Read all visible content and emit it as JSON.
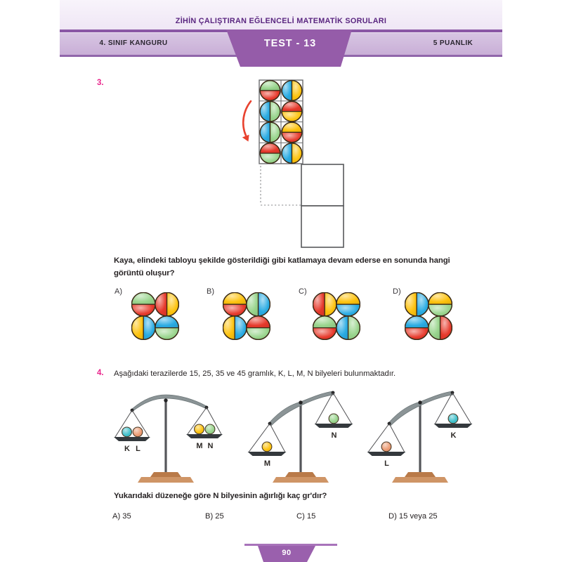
{
  "header": {
    "title": "ZİHİN ÇALIŞTIRAN EĞLENCELİ MATEMATİK SORULARI",
    "left_label": "4. SINIF KANGURU",
    "center_label": "TEST - 13",
    "right_label": "5 PUANLIK"
  },
  "q3": {
    "number": "3.",
    "question_lines": [
      "Kaya, elindeki tabloyu şekilde gösterildiği gibi katlamaya devam ederse en sonunda hangi",
      "görüntü oluşur?"
    ],
    "grid_balls": [
      [
        [
          "h",
          "green",
          "red"
        ],
        [
          "v",
          "blue",
          "yellow"
        ]
      ],
      [
        [
          "v",
          "blue",
          "green"
        ],
        [
          "h",
          "red",
          "yellow"
        ]
      ],
      [
        [
          "v",
          "blue",
          "green"
        ],
        [
          "h",
          "yellow",
          "red"
        ]
      ],
      [
        [
          "h",
          "red",
          "green"
        ],
        [
          "v",
          "blue",
          "yellow"
        ]
      ]
    ],
    "options": [
      {
        "label": "A)",
        "balls": [
          [
            "h",
            "green",
            "red"
          ],
          [
            "v",
            "red",
            "yellow"
          ],
          [
            "v",
            "yellow",
            "blue"
          ],
          [
            "h",
            "blue",
            "green"
          ]
        ]
      },
      {
        "label": "B)",
        "balls": [
          [
            "h",
            "yellow",
            "red"
          ],
          [
            "v",
            "green",
            "blue"
          ],
          [
            "v",
            "yellow",
            "blue"
          ],
          [
            "h",
            "red",
            "green"
          ]
        ]
      },
      {
        "label": "C)",
        "balls": [
          [
            "v",
            "red",
            "yellow"
          ],
          [
            "h",
            "yellow",
            "blue"
          ],
          [
            "h",
            "green",
            "red"
          ],
          [
            "v",
            "blue",
            "green"
          ]
        ]
      },
      {
        "label": "D)",
        "balls": [
          [
            "v",
            "yellow",
            "blue"
          ],
          [
            "h",
            "yellow",
            "green"
          ],
          [
            "h",
            "blue",
            "red"
          ],
          [
            "v",
            "green",
            "red"
          ]
        ]
      }
    ]
  },
  "q4": {
    "number": "4.",
    "stem": "Aşağıdaki terazilerde 15, 25, 35 ve 45 gramlık, K, L, M, N bilyeleri bulunmaktadır.",
    "scales": [
      {
        "tilt": "balanced",
        "left": [
          {
            "label": "K",
            "color": "teal"
          },
          {
            "label": "L",
            "color": "salmon"
          }
        ],
        "right": [
          {
            "label": "M",
            "color": "yellow"
          },
          {
            "label": "N",
            "color": "green"
          }
        ]
      },
      {
        "tilt": "left_down",
        "left": [
          {
            "label": "M",
            "color": "yellow"
          }
        ],
        "right": [
          {
            "label": "N",
            "color": "green"
          }
        ]
      },
      {
        "tilt": "left_down",
        "left": [
          {
            "label": "L",
            "color": "salmon"
          }
        ],
        "right": [
          {
            "label": "K",
            "color": "teal"
          }
        ]
      }
    ],
    "question": "Yukarıdaki düzeneğe göre N bilyesinin ağırlığı kaç gr'dır?",
    "answers": [
      "A) 35",
      "B) 25",
      "C) 15",
      "D) 15 veya 25"
    ]
  },
  "footer": {
    "page_number": "90"
  },
  "colors": {
    "red": "#e6392b",
    "green": "#98d48c",
    "blue": "#2aabe2",
    "yellow": "#fdc20e",
    "teal": "#3fc0cb",
    "salmon": "#eb9a72",
    "outline": "#3a2a16",
    "arrow": "#e8422f",
    "accent_purple": "#955ca9",
    "magenta": "#e9258c"
  }
}
